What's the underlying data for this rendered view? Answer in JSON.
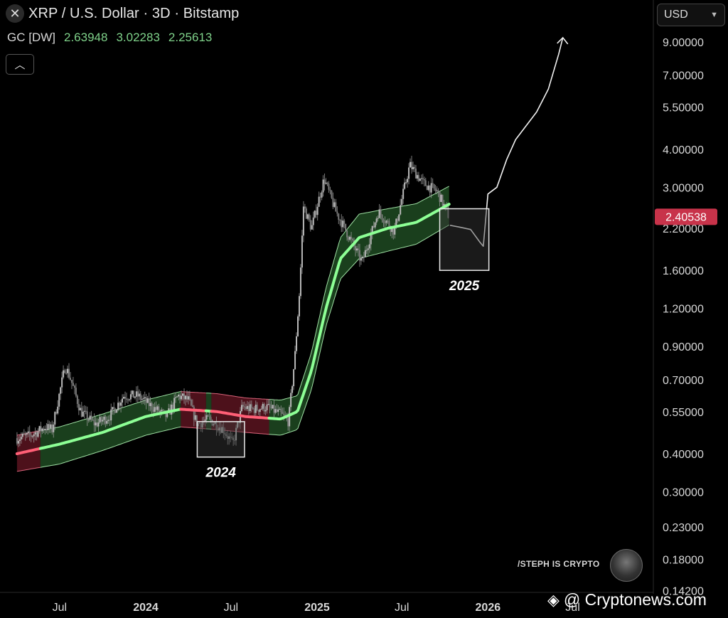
{
  "header": {
    "title": "XRP / U.S. Dollar · 3D · Bitstamp",
    "indicator_name": "GC [DW]",
    "indicator_values": [
      "2.63948",
      "3.02283",
      "2.25613"
    ]
  },
  "currency_selector": {
    "value": "USD"
  },
  "brand": {
    "author": "/STEPH IS CRYPTO"
  },
  "watermark": {
    "text": "@ Cryptonews.com"
  },
  "colors": {
    "background": "#000000",
    "band_green": "#1e4a22",
    "band_red": "#5a1420",
    "center_green": "#8dff95",
    "center_red": "#ff5f76",
    "price_tag": "#c8334a",
    "candles": "#9a9a9a"
  },
  "chart_data": {
    "type": "line",
    "scale": "log",
    "y_tick_labels": [
      "9.00000",
      "7.00000",
      "5.50000",
      "4.00000",
      "3.00000",
      "2.20000",
      "1.60000",
      "1.20000",
      "0.90000",
      "0.70000",
      "0.55000",
      "0.40000",
      "0.30000",
      "0.23000",
      "0.18000",
      "0.14200"
    ],
    "y_ticks": [
      9.0,
      7.0,
      5.5,
      4.0,
      3.0,
      2.2,
      1.6,
      1.2,
      0.9,
      0.7,
      0.55,
      0.4,
      0.3,
      0.23,
      0.18,
      0.142
    ],
    "x_ticks": [
      {
        "label": "Jul",
        "date": "2023-07-01"
      },
      {
        "label": "2024",
        "date": "2024-01-01"
      },
      {
        "label": "Jul",
        "date": "2024-07-01"
      },
      {
        "label": "2025",
        "date": "2025-01-01"
      },
      {
        "label": "Jul",
        "date": "2025-07-01"
      },
      {
        "label": "2026",
        "date": "2026-01-01"
      },
      {
        "label": "Jul",
        "date": "2026-07-01"
      }
    ],
    "last_price": {
      "label": "2.40538",
      "value": 2.40538
    },
    "price": [
      [
        "2023-04-01",
        0.45
      ],
      [
        "2023-05-01",
        0.46
      ],
      [
        "2023-06-01",
        0.49
      ],
      [
        "2023-06-15",
        0.48
      ],
      [
        "2023-07-13",
        0.78
      ],
      [
        "2023-07-25",
        0.7
      ],
      [
        "2023-08-15",
        0.55
      ],
      [
        "2023-09-15",
        0.5
      ],
      [
        "2023-10-15",
        0.53
      ],
      [
        "2023-11-15",
        0.62
      ],
      [
        "2023-12-15",
        0.62
      ],
      [
        "2024-01-15",
        0.57
      ],
      [
        "2024-02-15",
        0.53
      ],
      [
        "2024-03-10",
        0.62
      ],
      [
        "2024-04-01",
        0.6
      ],
      [
        "2024-04-20",
        0.5
      ],
      [
        "2024-05-15",
        0.52
      ],
      [
        "2024-06-15",
        0.48
      ],
      [
        "2024-07-05",
        0.43
      ],
      [
        "2024-07-25",
        0.57
      ],
      [
        "2024-08-15",
        0.56
      ],
      [
        "2024-09-15",
        0.57
      ],
      [
        "2024-10-15",
        0.54
      ],
      [
        "2024-11-01",
        0.51
      ],
      [
        "2024-11-15",
        0.85
      ],
      [
        "2024-11-25",
        1.4
      ],
      [
        "2024-12-03",
        2.6
      ],
      [
        "2024-12-20",
        2.2
      ],
      [
        "2025-01-16",
        3.2
      ],
      [
        "2025-02-10",
        2.5
      ],
      [
        "2025-03-01",
        2.2
      ],
      [
        "2025-04-07",
        1.7
      ],
      [
        "2025-05-12",
        2.5
      ],
      [
        "2025-06-15",
        2.15
      ],
      [
        "2025-07-18",
        3.55
      ],
      [
        "2025-08-15",
        3.1
      ],
      [
        "2025-09-15",
        2.9
      ],
      [
        "2025-10-10",
        2.4
      ]
    ],
    "gc_center": [
      [
        "2023-04-01",
        0.4
      ],
      [
        "2023-07-01",
        0.43
      ],
      [
        "2023-10-01",
        0.47
      ],
      [
        "2024-01-01",
        0.53
      ],
      [
        "2024-03-15",
        0.56
      ],
      [
        "2024-06-01",
        0.55
      ],
      [
        "2024-08-01",
        0.53
      ],
      [
        "2024-10-15",
        0.52
      ],
      [
        "2024-11-20",
        0.55
      ],
      [
        "2024-12-20",
        0.75
      ],
      [
        "2025-01-20",
        1.2
      ],
      [
        "2025-02-20",
        1.75
      ],
      [
        "2025-04-01",
        2.05
      ],
      [
        "2025-06-01",
        2.2
      ],
      [
        "2025-08-01",
        2.3
      ],
      [
        "2025-10-10",
        2.63948
      ]
    ],
    "gc_upper": [
      [
        "2023-04-01",
        0.46
      ],
      [
        "2023-07-01",
        0.49
      ],
      [
        "2023-10-01",
        0.54
      ],
      [
        "2024-01-01",
        0.6
      ],
      [
        "2024-03-15",
        0.64
      ],
      [
        "2024-06-01",
        0.63
      ],
      [
        "2024-08-01",
        0.61
      ],
      [
        "2024-10-15",
        0.6
      ],
      [
        "2024-11-20",
        0.62
      ],
      [
        "2024-12-20",
        0.86
      ],
      [
        "2025-01-20",
        1.4
      ],
      [
        "2025-02-20",
        2.05
      ],
      [
        "2025-04-01",
        2.45
      ],
      [
        "2025-06-01",
        2.55
      ],
      [
        "2025-08-01",
        2.65
      ],
      [
        "2025-10-10",
        3.02283
      ]
    ],
    "gc_lower": [
      [
        "2023-04-01",
        0.35
      ],
      [
        "2023-07-01",
        0.37
      ],
      [
        "2023-10-01",
        0.41
      ],
      [
        "2024-01-01",
        0.46
      ],
      [
        "2024-03-15",
        0.49
      ],
      [
        "2024-06-01",
        0.48
      ],
      [
        "2024-08-01",
        0.47
      ],
      [
        "2024-10-15",
        0.46
      ],
      [
        "2024-11-20",
        0.48
      ],
      [
        "2024-12-20",
        0.65
      ],
      [
        "2025-01-20",
        1.05
      ],
      [
        "2025-02-20",
        1.5
      ],
      [
        "2025-04-01",
        1.75
      ],
      [
        "2025-06-01",
        1.85
      ],
      [
        "2025-08-01",
        1.95
      ],
      [
        "2025-10-10",
        2.25613
      ]
    ],
    "bear_segments": [
      [
        "2023-04-01",
        "2023-05-20"
      ],
      [
        "2024-03-15",
        "2024-05-05"
      ],
      [
        "2024-05-20",
        "2024-09-20"
      ]
    ],
    "projection": [
      [
        "2025-10-12",
        2.25
      ],
      [
        "2025-11-01",
        2.22
      ],
      [
        "2025-11-25",
        2.18
      ],
      [
        "2025-12-15",
        1.98
      ],
      [
        "2025-12-22",
        1.92
      ],
      [
        "2026-01-01",
        2.85
      ],
      [
        "2026-01-20",
        3.0
      ],
      [
        "2026-02-10",
        3.7
      ],
      [
        "2026-03-01",
        4.3
      ],
      [
        "2026-04-15",
        5.3
      ],
      [
        "2026-05-10",
        6.3
      ],
      [
        "2026-06-01",
        8.2
      ],
      [
        "2026-06-10",
        9.3
      ]
    ],
    "annotations": [
      {
        "label": "2024",
        "from": "2024-04-20",
        "to": "2024-07-30",
        "low": 0.39,
        "high": 0.51
      },
      {
        "label": "2025",
        "from": "2025-09-20",
        "to": "2026-01-03",
        "low": 1.6,
        "high": 2.55
      }
    ]
  }
}
